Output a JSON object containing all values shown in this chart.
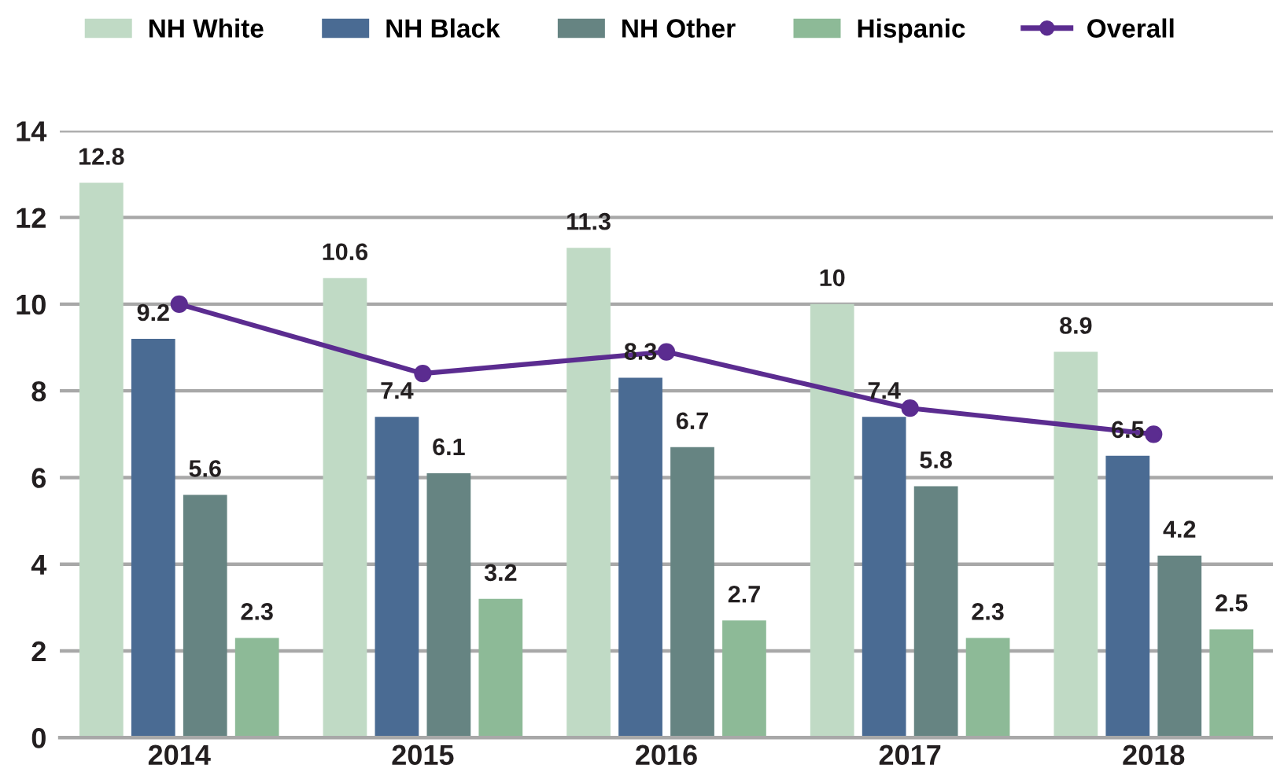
{
  "chart_data": {
    "type": "bar",
    "categories": [
      "2014",
      "2015",
      "2016",
      "2017",
      "2018"
    ],
    "series": [
      {
        "name": "NH White",
        "color": "#c0dac5",
        "values": [
          12.8,
          10.6,
          11.3,
          10,
          8.9
        ]
      },
      {
        "name": "NH Black",
        "color": "#4a6b93",
        "values": [
          9.2,
          7.4,
          8.3,
          7.4,
          6.5
        ]
      },
      {
        "name": "NH Other",
        "color": "#668482",
        "values": [
          5.6,
          6.1,
          6.7,
          5.8,
          4.2
        ]
      },
      {
        "name": "Hispanic",
        "color": "#8dba97",
        "values": [
          2.3,
          3.2,
          2.7,
          2.3,
          2.5
        ]
      },
      {
        "name": "Overall",
        "type": "line",
        "color": "#5b2c90",
        "values": [
          10.0,
          8.4,
          8.9,
          7.6,
          7.0
        ],
        "marker": "circle",
        "data_labels": false
      }
    ],
    "ylim": [
      0,
      14
    ],
    "yticks": [
      0,
      2,
      4,
      6,
      8,
      10,
      12,
      14
    ],
    "grid": "y",
    "legend": "top",
    "data_labels": true
  }
}
